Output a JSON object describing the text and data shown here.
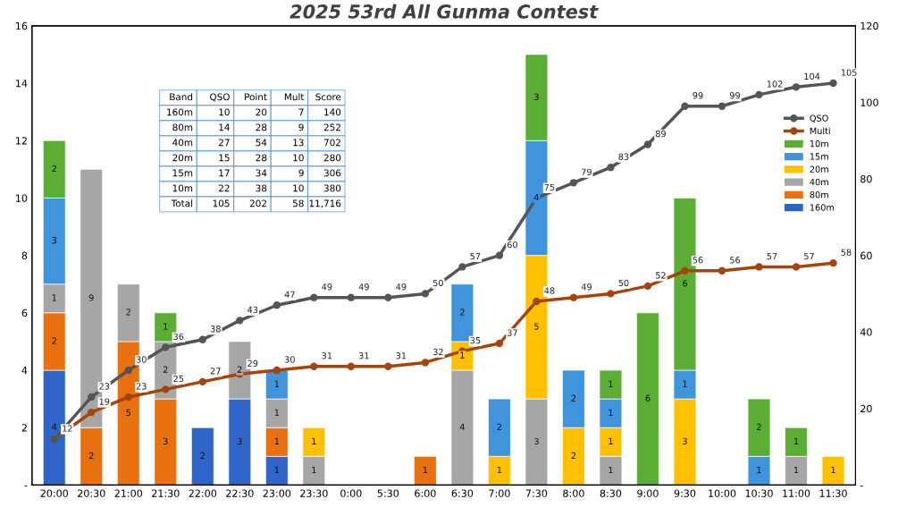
{
  "chart_data": {
    "type": "bar",
    "title": "2025 53rd All Gunma Contest",
    "stacked": true,
    "categories": [
      "20:00",
      "20:30",
      "21:00",
      "21:30",
      "22:00",
      "22:30",
      "23:00",
      "23:30",
      "0:00",
      "5:30",
      "6:00",
      "6:30",
      "7:00",
      "7:30",
      "8:00",
      "8:30",
      "9:00",
      "9:30",
      "10:00",
      "10:30",
      "11:00",
      "11:30"
    ],
    "series": [
      {
        "name": "160m",
        "color": "#2f65c8",
        "values": [
          4,
          null,
          null,
          null,
          2,
          3,
          1,
          null,
          null,
          null,
          null,
          null,
          null,
          null,
          null,
          null,
          null,
          null,
          null,
          null,
          null,
          null
        ]
      },
      {
        "name": "80m",
        "color": "#e8700e",
        "values": [
          2,
          2,
          5,
          3,
          null,
          null,
          1,
          null,
          null,
          null,
          1,
          null,
          null,
          null,
          null,
          null,
          null,
          null,
          null,
          null,
          null,
          null
        ]
      },
      {
        "name": "40m",
        "color": "#a6a6a6",
        "values": [
          1,
          9,
          2,
          2,
          null,
          2,
          1,
          1,
          null,
          null,
          null,
          4,
          null,
          3,
          null,
          1,
          null,
          null,
          null,
          null,
          1,
          null
        ]
      },
      {
        "name": "20m",
        "color": "#ffc000",
        "values": [
          null,
          null,
          null,
          null,
          null,
          null,
          null,
          1,
          null,
          null,
          null,
          1,
          1,
          5,
          2,
          1,
          null,
          3,
          null,
          null,
          null,
          1
        ]
      },
      {
        "name": "15m",
        "color": "#3f94dc",
        "values": [
          3,
          null,
          null,
          null,
          null,
          null,
          1,
          null,
          null,
          null,
          null,
          2,
          2,
          4,
          2,
          1,
          null,
          1,
          null,
          1,
          null,
          null
        ]
      },
      {
        "name": "10m",
        "color": "#5cad34",
        "values": [
          2,
          null,
          null,
          1,
          null,
          null,
          null,
          null,
          null,
          null,
          null,
          null,
          null,
          3,
          null,
          1,
          6,
          6,
          null,
          2,
          1,
          null
        ]
      },
      {
        "name": "Multi",
        "type": "line",
        "axis": "y2",
        "color": "#a5440c",
        "values": [
          12,
          19,
          23,
          25,
          27,
          29,
          30,
          31,
          31,
          31,
          32,
          35,
          37,
          48,
          49,
          50,
          52,
          56,
          56,
          57,
          57,
          58
        ]
      },
      {
        "name": "QSO",
        "type": "line",
        "axis": "y2",
        "color": "#555555",
        "values": [
          12,
          23,
          30,
          36,
          38,
          43,
          47,
          49,
          49,
          49,
          50,
          57,
          60,
          75,
          79,
          83,
          89,
          99,
          99,
          102,
          104,
          105
        ],
        "value_labels": [
          null,
          "23",
          "30",
          "36",
          "38",
          "43",
          "47",
          "49",
          "49",
          "49",
          "50",
          "57",
          "60",
          "75",
          "79",
          "83",
          "89",
          "99",
          "99",
          "102",
          "104",
          "105"
        ]
      }
    ],
    "ylim": [
      0,
      16
    ],
    "yticks": [
      {
        "value": 0,
        "label": "-"
      },
      2,
      4,
      6,
      8,
      10,
      12,
      14,
      16
    ],
    "y2lim": [
      0,
      120
    ],
    "y2ticks": [
      {
        "value": 0,
        "label": "-"
      },
      20,
      40,
      60,
      80,
      100,
      120
    ],
    "data_labels": true,
    "marker": "circle",
    "legend": "right",
    "grid": false,
    "annotations": [
      "Band",
      "QSO",
      "Point",
      "Mult",
      "Score",
      "160m",
      "10",
      "20",
      "7",
      "140",
      "80m",
      "14",
      "28",
      "9",
      "252",
      "40m",
      "27",
      "54",
      "13",
      "702",
      "20m",
      "15",
      "28",
      "10",
      "280",
      "15m",
      "17",
      "34",
      "9",
      "306",
      "10m",
      "22",
      "38",
      "10",
      "380",
      "Total",
      "105",
      "202",
      "58",
      "11,716"
    ]
  }
}
